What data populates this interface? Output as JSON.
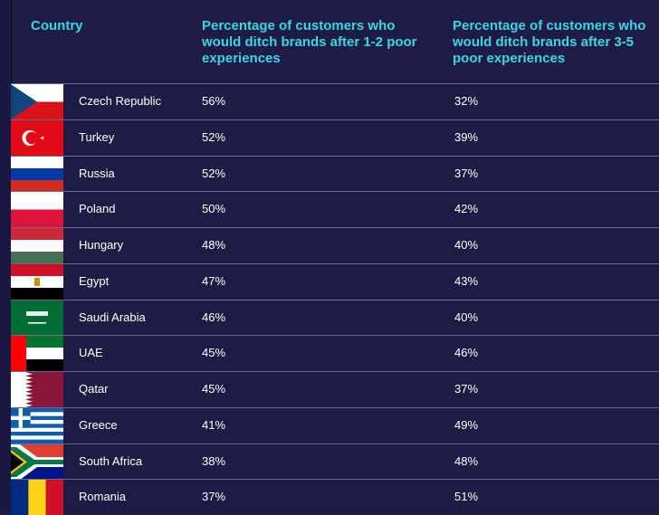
{
  "table": {
    "headers": {
      "country": "Country",
      "col1": "Percentage of customers who would ditch brands after 1-2 poor experiences",
      "col2": "Percentage of customers who would ditch brands after 3-5 poor experiences"
    },
    "rows": [
      {
        "country": "Czech Republic",
        "v1": "56%",
        "v2": "32%",
        "flag_icon": "czech-flag-icon"
      },
      {
        "country": "Turkey",
        "v1": "52%",
        "v2": "39%",
        "flag_icon": "turkey-flag-icon"
      },
      {
        "country": "Russia",
        "v1": "52%",
        "v2": "37%",
        "flag_icon": "russia-flag-icon"
      },
      {
        "country": "Poland",
        "v1": "50%",
        "v2": "42%",
        "flag_icon": "poland-flag-icon"
      },
      {
        "country": "Hungary",
        "v1": "48%",
        "v2": "40%",
        "flag_icon": "hungary-flag-icon"
      },
      {
        "country": "Egypt",
        "v1": "47%",
        "v2": "43%",
        "flag_icon": "egypt-flag-icon"
      },
      {
        "country": "Saudi Arabia",
        "v1": "46%",
        "v2": "40%",
        "flag_icon": "saudi-arabia-flag-icon"
      },
      {
        "country": "UAE",
        "v1": "45%",
        "v2": "46%",
        "flag_icon": "uae-flag-icon"
      },
      {
        "country": "Qatar",
        "v1": "45%",
        "v2": "37%",
        "flag_icon": "qatar-flag-icon"
      },
      {
        "country": "Greece",
        "v1": "41%",
        "v2": "49%",
        "flag_icon": "greece-flag-icon"
      },
      {
        "country": "South Africa",
        "v1": "38%",
        "v2": "48%",
        "flag_icon": "south-africa-flag-icon"
      },
      {
        "country": "Romania",
        "v1": "37%",
        "v2": "51%",
        "flag_icon": "romania-flag-icon"
      }
    ]
  },
  "colors": {
    "background": "#1e1c45",
    "header_text": "#3ad6e6",
    "body_text": "#ffffff",
    "row_divider": "#6a6890"
  },
  "chart_data": {
    "type": "table",
    "columns": [
      "Country",
      "Percentage of customers who would ditch brands after 1-2 poor experiences",
      "Percentage of customers who would ditch brands after 3-5 poor experiences"
    ],
    "rows": [
      [
        "Czech Republic",
        "56%",
        "32%"
      ],
      [
        "Turkey",
        "52%",
        "39%"
      ],
      [
        "Russia",
        "52%",
        "37%"
      ],
      [
        "Poland",
        "50%",
        "42%"
      ],
      [
        "Hungary",
        "48%",
        "40%"
      ],
      [
        "Egypt",
        "47%",
        "43%"
      ],
      [
        "Saudi Arabia",
        "46%",
        "40%"
      ],
      [
        "UAE",
        "45%",
        "46%"
      ],
      [
        "Qatar",
        "45%",
        "37%"
      ],
      [
        "Greece",
        "41%",
        "49%"
      ],
      [
        "South Africa",
        "38%",
        "48%"
      ],
      [
        "Romania",
        "37%",
        "51%"
      ]
    ]
  }
}
